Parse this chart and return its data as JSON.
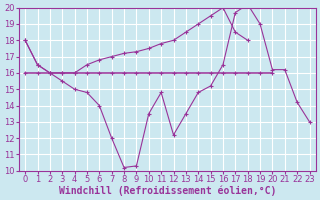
{
  "x": [
    0,
    1,
    2,
    3,
    4,
    5,
    6,
    7,
    8,
    9,
    10,
    11,
    12,
    13,
    14,
    15,
    16,
    17,
    18,
    19,
    20,
    21,
    22,
    23
  ],
  "line_upper": [
    18,
    16.5,
    16.0,
    16.0,
    16.0,
    16.5,
    16.8,
    17.0,
    17.2,
    17.3,
    17.5,
    17.8,
    18.0,
    18.5,
    19.0,
    19.5,
    20.0,
    18.5,
    18.0,
    null,
    null,
    null,
    null,
    null
  ],
  "line_mean": [
    16,
    16,
    16,
    16,
    16,
    16,
    16,
    16,
    16,
    16,
    16,
    16,
    16,
    16,
    16,
    16,
    16,
    16,
    16,
    16,
    16,
    null,
    null,
    null
  ],
  "line_lower": [
    18,
    16.5,
    16.0,
    15.5,
    15.0,
    14.8,
    14.0,
    12.0,
    10.2,
    10.3,
    13.5,
    14.8,
    12.2,
    13.5,
    14.8,
    15.2,
    16.5,
    19.7,
    20.2,
    19.0,
    16.2,
    16.2,
    14.2,
    13.0
  ],
  "color": "#993399",
  "bg_color": "#cce8f0",
  "grid_color": "#b8d8e0",
  "xlabel": "Windchill (Refroidissement éolien,°C)",
  "ylim": [
    10,
    20
  ],
  "xlim": [
    -0.5,
    23.5
  ],
  "yticks": [
    10,
    11,
    12,
    13,
    14,
    15,
    16,
    17,
    18,
    19,
    20
  ],
  "xticks": [
    0,
    1,
    2,
    3,
    4,
    5,
    6,
    7,
    8,
    9,
    10,
    11,
    12,
    13,
    14,
    15,
    16,
    17,
    18,
    19,
    20,
    21,
    22,
    23
  ],
  "xlabel_fontsize": 7,
  "tick_fontsize": 6,
  "marker_size": 3,
  "linewidth": 0.8
}
